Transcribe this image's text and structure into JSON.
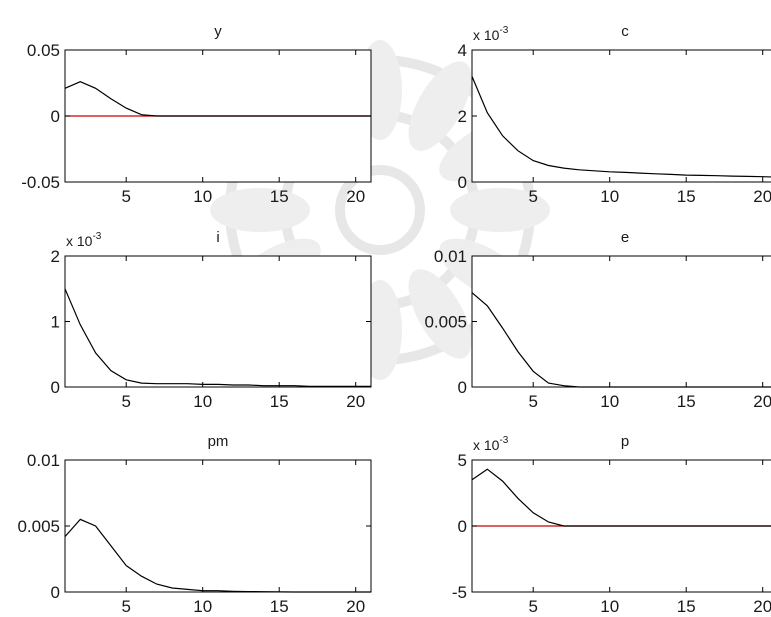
{
  "chart_data": [
    {
      "type": "line",
      "title": "y",
      "xlim": [
        1,
        21
      ],
      "ylim": [
        -0.05,
        0.05
      ],
      "xticks": [
        5,
        10,
        15,
        20
      ],
      "xtick_labels": [
        "5",
        "10",
        "15",
        "20"
      ],
      "yticks": [
        -0.05,
        0,
        0.05
      ],
      "ytick_labels": [
        "-0.05",
        "0",
        "0.05"
      ],
      "exponent_label": "",
      "zero_line": true,
      "x": [
        1,
        2,
        3,
        4,
        5,
        6,
        7,
        8,
        9,
        10,
        11,
        12,
        13,
        14,
        15,
        16,
        17,
        18,
        19,
        20,
        21
      ],
      "values": [
        0.021,
        0.026,
        0.021,
        0.013,
        0.006,
        0.001,
        0,
        0,
        0,
        0,
        0,
        0,
        0,
        0,
        0,
        0,
        0,
        0,
        0,
        0,
        0
      ]
    },
    {
      "type": "line",
      "title": "c",
      "xlim": [
        1,
        21
      ],
      "ylim": [
        0,
        0.004
      ],
      "xticks": [
        5,
        10,
        15,
        20
      ],
      "xtick_labels": [
        "5",
        "10",
        "15",
        "20"
      ],
      "yticks": [
        0,
        0.002,
        0.004
      ],
      "ytick_labels": [
        "0",
        "2",
        "4"
      ],
      "exponent_label": "x 10",
      "exponent_power": "-3",
      "zero_line": false,
      "x": [
        1,
        2,
        3,
        4,
        5,
        6,
        7,
        8,
        9,
        10,
        11,
        12,
        13,
        14,
        15,
        16,
        17,
        18,
        19,
        20,
        21
      ],
      "values": [
        0.0032,
        0.0021,
        0.0014,
        0.00095,
        0.00065,
        0.0005,
        0.00042,
        0.00037,
        0.00034,
        0.00031,
        0.00029,
        0.00027,
        0.00025,
        0.00023,
        0.00021,
        0.0002,
        0.00019,
        0.00018,
        0.00017,
        0.00016,
        0.00015
      ]
    },
    {
      "type": "line",
      "title": "i",
      "xlim": [
        1,
        21
      ],
      "ylim": [
        0,
        0.002
      ],
      "xticks": [
        5,
        10,
        15,
        20
      ],
      "xtick_labels": [
        "5",
        "10",
        "15",
        "20"
      ],
      "yticks": [
        0,
        0.001,
        0.002
      ],
      "ytick_labels": [
        "0",
        "1",
        "2"
      ],
      "exponent_label": "x 10",
      "exponent_power": "-3",
      "zero_line": false,
      "x": [
        1,
        2,
        3,
        4,
        5,
        6,
        7,
        8,
        9,
        10,
        11,
        12,
        13,
        14,
        15,
        16,
        17,
        18,
        19,
        20,
        21
      ],
      "values": [
        0.0015,
        0.00095,
        0.00052,
        0.00025,
        0.00011,
        6e-05,
        5e-05,
        5e-05,
        5e-05,
        4e-05,
        4e-05,
        3e-05,
        3e-05,
        2e-05,
        2e-05,
        2e-05,
        1e-05,
        1e-05,
        1e-05,
        1e-05,
        1e-05
      ]
    },
    {
      "type": "line",
      "title": "e",
      "xlim": [
        1,
        21
      ],
      "ylim": [
        0,
        0.01
      ],
      "xticks": [
        5,
        10,
        15,
        20
      ],
      "xtick_labels": [
        "5",
        "10",
        "15",
        "20"
      ],
      "yticks": [
        0,
        0.005,
        0.01
      ],
      "ytick_labels": [
        "0",
        "0.005",
        "0.01"
      ],
      "exponent_label": "",
      "zero_line": false,
      "x": [
        1,
        2,
        3,
        4,
        5,
        6,
        7,
        8,
        9,
        10,
        11,
        12,
        13,
        14,
        15,
        16,
        17,
        18,
        19,
        20,
        21
      ],
      "values": [
        0.0072,
        0.0062,
        0.0045,
        0.0027,
        0.0012,
        0.0003,
        0.0001,
        0,
        0,
        0,
        0,
        0,
        0,
        0,
        0,
        0,
        0,
        0,
        0,
        0,
        0
      ]
    },
    {
      "type": "line",
      "title": "pm",
      "xlim": [
        1,
        21
      ],
      "ylim": [
        0,
        0.01
      ],
      "xticks": [
        5,
        10,
        15,
        20
      ],
      "xtick_labels": [
        "5",
        "10",
        "15",
        "20"
      ],
      "yticks": [
        0,
        0.005,
        0.01
      ],
      "ytick_labels": [
        "0",
        "0.005",
        "0.01"
      ],
      "exponent_label": "",
      "zero_line": false,
      "x": [
        1,
        2,
        3,
        4,
        5,
        6,
        7,
        8,
        9,
        10,
        11,
        12,
        13,
        14,
        15,
        16,
        17,
        18,
        19,
        20,
        21
      ],
      "values": [
        0.0042,
        0.0055,
        0.005,
        0.0035,
        0.002,
        0.0012,
        0.0006,
        0.0003,
        0.0002,
        0.0001,
        0.0001,
        5e-05,
        3e-05,
        2e-05,
        1e-05,
        0,
        0,
        0,
        0,
        0,
        0
      ]
    },
    {
      "type": "line",
      "title": "p",
      "xlim": [
        1,
        21
      ],
      "ylim": [
        -0.005,
        0.005
      ],
      "xticks": [
        5,
        10,
        15,
        20
      ],
      "xtick_labels": [
        "5",
        "10",
        "15",
        "20"
      ],
      "yticks": [
        -0.005,
        0,
        0.005
      ],
      "ytick_labels": [
        "-5",
        "0",
        "5"
      ],
      "exponent_label": "x 10",
      "exponent_power": "-3",
      "zero_line": true,
      "x": [
        1,
        2,
        3,
        4,
        5,
        6,
        7,
        8,
        9,
        10,
        11,
        12,
        13,
        14,
        15,
        16,
        17,
        18,
        19,
        20,
        21
      ],
      "values": [
        0.0035,
        0.0043,
        0.0034,
        0.0021,
        0.001,
        0.0003,
        0,
        0,
        0,
        0,
        0,
        0,
        0,
        0,
        0,
        0,
        0,
        0,
        0,
        0,
        0
      ]
    }
  ],
  "colors": {
    "axis": "#000000",
    "series": "#000000",
    "zero_line": "#cc0000",
    "tick_text": "#1a1a1a"
  }
}
